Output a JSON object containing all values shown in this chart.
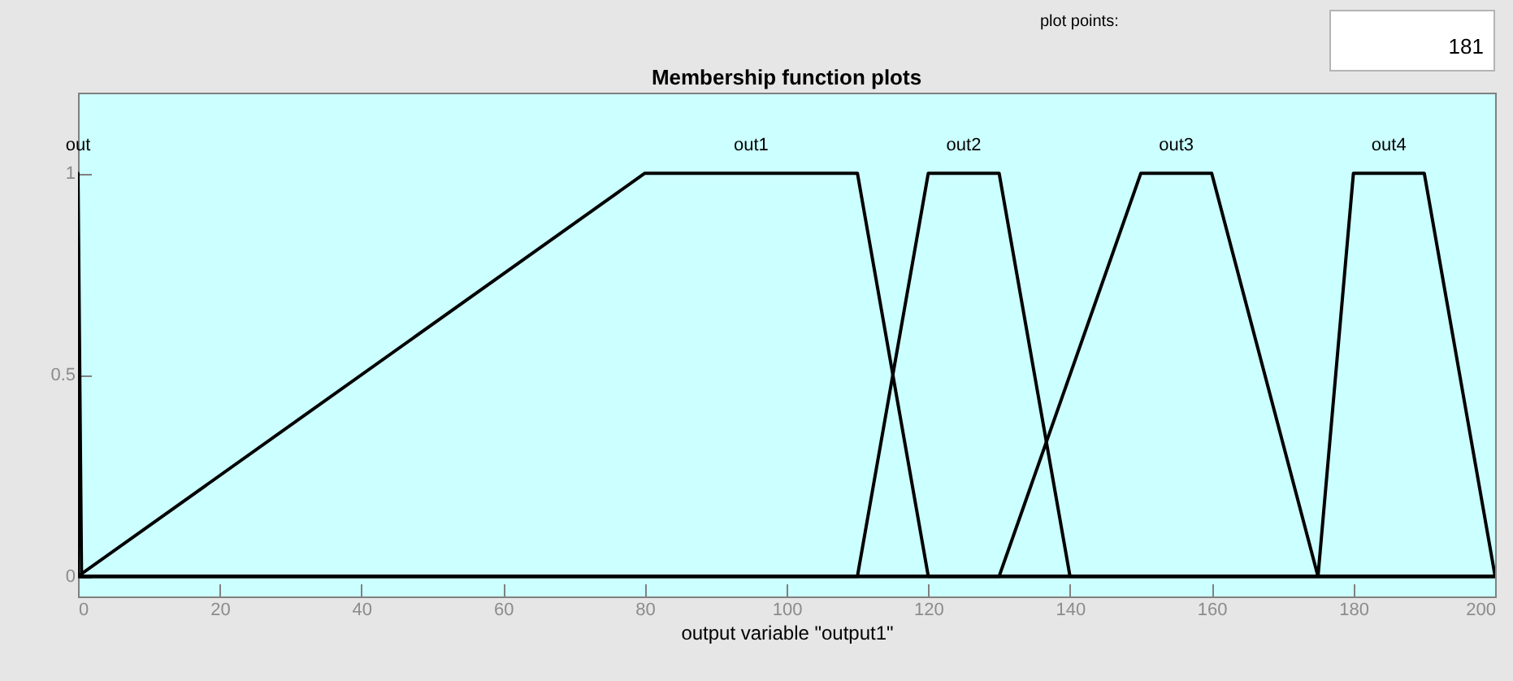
{
  "chart_data": {
    "type": "line",
    "title": "Membership function plots",
    "xlabel": "output variable \"output1\"",
    "annotations": [
      "plot points:",
      "181"
    ],
    "xlim": [
      0,
      200
    ],
    "ylim": [
      -0.05,
      1.2
    ],
    "xticks": [
      0,
      20,
      40,
      60,
      80,
      100,
      120,
      140,
      160,
      180,
      200
    ],
    "yticks": [
      0,
      0.5,
      1
    ],
    "grid": false,
    "legend": false,
    "marker": "none",
    "line_style": "solid",
    "series": [
      {
        "name": "out",
        "color": "#000000",
        "x": [
          0,
          0,
          0.5,
          200
        ],
        "values": [
          0,
          1,
          0,
          0
        ]
      },
      {
        "name": "out1",
        "color": "#000000",
        "x": [
          0,
          80,
          110,
          120,
          200
        ],
        "values": [
          0,
          1,
          1,
          0,
          0
        ]
      },
      {
        "name": "out2",
        "color": "#000000",
        "x": [
          0,
          110,
          120,
          130,
          140,
          200
        ],
        "values": [
          0,
          0,
          1,
          1,
          0,
          0
        ]
      },
      {
        "name": "out3",
        "color": "#000000",
        "x": [
          0,
          130,
          150,
          160,
          175,
          200
        ],
        "values": [
          0,
          0,
          1,
          1,
          0,
          0
        ]
      },
      {
        "name": "out4",
        "color": "#000000",
        "x": [
          0,
          175,
          180,
          190,
          200
        ],
        "values": [
          0,
          0,
          1,
          1,
          0
        ]
      }
    ]
  }
}
